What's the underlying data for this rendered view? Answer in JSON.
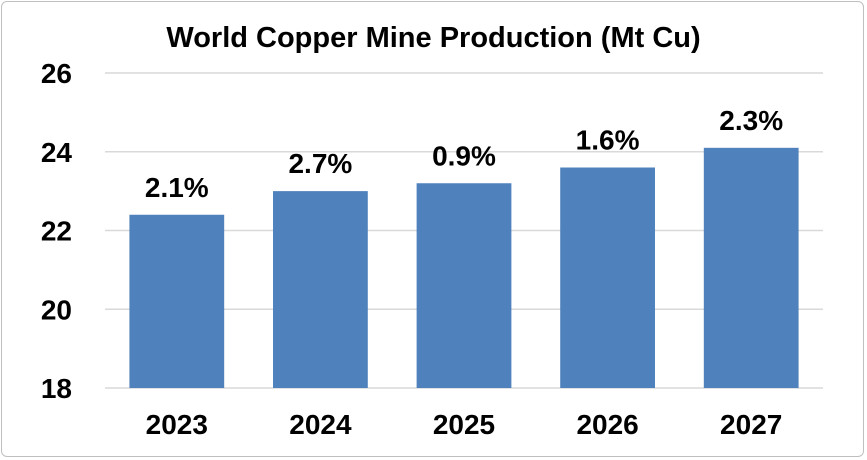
{
  "chart_data": {
    "type": "bar",
    "title": "World Copper Mine Production (Mt Cu)",
    "xlabel": "",
    "ylabel": "",
    "categories": [
      "2023",
      "2024",
      "2025",
      "2026",
      "2027"
    ],
    "values": [
      22.4,
      23.0,
      23.2,
      23.6,
      24.1
    ],
    "data_labels": [
      "2.1%",
      "2.7%",
      "0.9%",
      "1.6%",
      "2.3%"
    ],
    "ylim": [
      18,
      26
    ],
    "yticks": [
      18,
      20,
      22,
      24,
      26
    ],
    "grid": true,
    "legend": "none",
    "colors": {
      "bar": "#4F81BD",
      "grid": "#d9d9d9"
    }
  }
}
